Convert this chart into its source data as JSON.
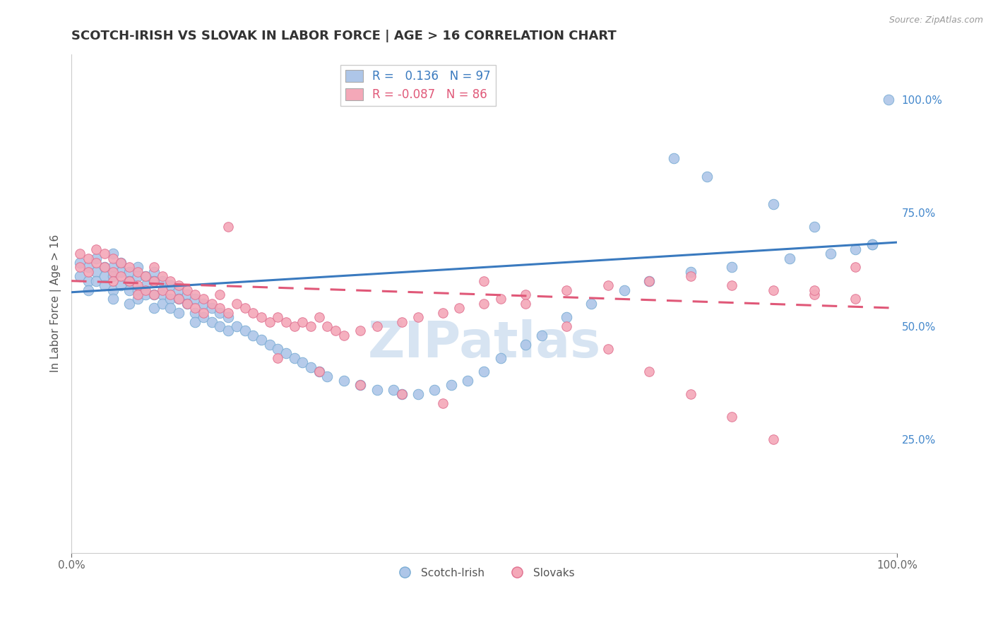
{
  "title": "SCOTCH-IRISH VS SLOVAK IN LABOR FORCE | AGE > 16 CORRELATION CHART",
  "source_text": "Source: ZipAtlas.com",
  "ylabel": "In Labor Force | Age > 16",
  "x_tick_labels": [
    "0.0%",
    "100.0%"
  ],
  "y_tick_labels_right": [
    "25.0%",
    "50.0%",
    "75.0%",
    "100.0%"
  ],
  "y_tick_positions_right": [
    0.25,
    0.5,
    0.75,
    1.0
  ],
  "xlim": [
    0.0,
    1.0
  ],
  "ylim": [
    0.0,
    1.1
  ],
  "legend_label_blue": "Scotch-Irish",
  "legend_label_pink": "Slovaks",
  "R_blue": 0.136,
  "N_blue": 97,
  "R_pink": -0.087,
  "N_pink": 86,
  "blue_color": "#aec6e8",
  "blue_edge": "#7aadd4",
  "pink_color": "#f4a8b8",
  "pink_edge": "#e07090",
  "blue_line_color": "#3a7abf",
  "pink_line_color": "#e05878",
  "title_color": "#333333",
  "watermark_color": "#d0e0f0",
  "grid_color": "#cccccc",
  "background_color": "#ffffff",
  "right_tick_color": "#4488cc",
  "scotch_irish_x": [
    0.01,
    0.01,
    0.02,
    0.02,
    0.02,
    0.03,
    0.03,
    0.03,
    0.04,
    0.04,
    0.04,
    0.05,
    0.05,
    0.05,
    0.05,
    0.05,
    0.06,
    0.06,
    0.06,
    0.07,
    0.07,
    0.07,
    0.07,
    0.08,
    0.08,
    0.08,
    0.08,
    0.09,
    0.09,
    0.09,
    0.1,
    0.1,
    0.1,
    0.1,
    0.11,
    0.11,
    0.11,
    0.12,
    0.12,
    0.12,
    0.13,
    0.13,
    0.13,
    0.14,
    0.14,
    0.15,
    0.15,
    0.15,
    0.16,
    0.16,
    0.17,
    0.17,
    0.18,
    0.18,
    0.19,
    0.19,
    0.2,
    0.21,
    0.22,
    0.23,
    0.24,
    0.25,
    0.26,
    0.27,
    0.28,
    0.29,
    0.3,
    0.31,
    0.33,
    0.35,
    0.37,
    0.39,
    0.4,
    0.42,
    0.44,
    0.46,
    0.48,
    0.5,
    0.52,
    0.55,
    0.57,
    0.6,
    0.63,
    0.67,
    0.7,
    0.75,
    0.8,
    0.87,
    0.92,
    0.95,
    0.97,
    0.99,
    0.73,
    0.77,
    0.85,
    0.9,
    0.97
  ],
  "scotch_irish_y": [
    0.64,
    0.61,
    0.63,
    0.6,
    0.58,
    0.65,
    0.62,
    0.6,
    0.63,
    0.61,
    0.59,
    0.66,
    0.63,
    0.61,
    0.58,
    0.56,
    0.64,
    0.62,
    0.59,
    0.62,
    0.6,
    0.58,
    0.55,
    0.63,
    0.61,
    0.58,
    0.56,
    0.61,
    0.59,
    0.57,
    0.62,
    0.6,
    0.57,
    0.54,
    0.6,
    0.57,
    0.55,
    0.59,
    0.56,
    0.54,
    0.58,
    0.56,
    0.53,
    0.57,
    0.55,
    0.56,
    0.53,
    0.51,
    0.55,
    0.52,
    0.54,
    0.51,
    0.53,
    0.5,
    0.52,
    0.49,
    0.5,
    0.49,
    0.48,
    0.47,
    0.46,
    0.45,
    0.44,
    0.43,
    0.42,
    0.41,
    0.4,
    0.39,
    0.38,
    0.37,
    0.36,
    0.36,
    0.35,
    0.35,
    0.36,
    0.37,
    0.38,
    0.4,
    0.43,
    0.46,
    0.48,
    0.52,
    0.55,
    0.58,
    0.6,
    0.62,
    0.63,
    0.65,
    0.66,
    0.67,
    0.68,
    1.0,
    0.87,
    0.83,
    0.77,
    0.72,
    0.68
  ],
  "slovak_x": [
    0.01,
    0.01,
    0.02,
    0.02,
    0.03,
    0.03,
    0.04,
    0.04,
    0.05,
    0.05,
    0.05,
    0.06,
    0.06,
    0.07,
    0.07,
    0.08,
    0.08,
    0.08,
    0.09,
    0.09,
    0.1,
    0.1,
    0.1,
    0.11,
    0.11,
    0.12,
    0.12,
    0.13,
    0.13,
    0.14,
    0.14,
    0.15,
    0.15,
    0.16,
    0.16,
    0.17,
    0.18,
    0.18,
    0.19,
    0.2,
    0.21,
    0.22,
    0.23,
    0.24,
    0.25,
    0.26,
    0.27,
    0.28,
    0.29,
    0.3,
    0.31,
    0.32,
    0.33,
    0.35,
    0.37,
    0.4,
    0.42,
    0.45,
    0.47,
    0.5,
    0.52,
    0.55,
    0.6,
    0.65,
    0.7,
    0.75,
    0.8,
    0.85,
    0.9,
    0.95,
    0.19,
    0.25,
    0.3,
    0.35,
    0.4,
    0.45,
    0.5,
    0.55,
    0.6,
    0.65,
    0.7,
    0.75,
    0.8,
    0.85,
    0.9,
    0.95
  ],
  "slovak_y": [
    0.66,
    0.63,
    0.65,
    0.62,
    0.67,
    0.64,
    0.66,
    0.63,
    0.65,
    0.62,
    0.6,
    0.64,
    0.61,
    0.63,
    0.6,
    0.62,
    0.59,
    0.57,
    0.61,
    0.58,
    0.63,
    0.6,
    0.57,
    0.61,
    0.58,
    0.6,
    0.57,
    0.59,
    0.56,
    0.58,
    0.55,
    0.57,
    0.54,
    0.56,
    0.53,
    0.55,
    0.57,
    0.54,
    0.53,
    0.55,
    0.54,
    0.53,
    0.52,
    0.51,
    0.52,
    0.51,
    0.5,
    0.51,
    0.5,
    0.52,
    0.5,
    0.49,
    0.48,
    0.49,
    0.5,
    0.51,
    0.52,
    0.53,
    0.54,
    0.55,
    0.56,
    0.57,
    0.58,
    0.59,
    0.6,
    0.61,
    0.59,
    0.58,
    0.57,
    0.56,
    0.72,
    0.43,
    0.4,
    0.37,
    0.35,
    0.33,
    0.6,
    0.55,
    0.5,
    0.45,
    0.4,
    0.35,
    0.3,
    0.25,
    0.58,
    0.63
  ]
}
